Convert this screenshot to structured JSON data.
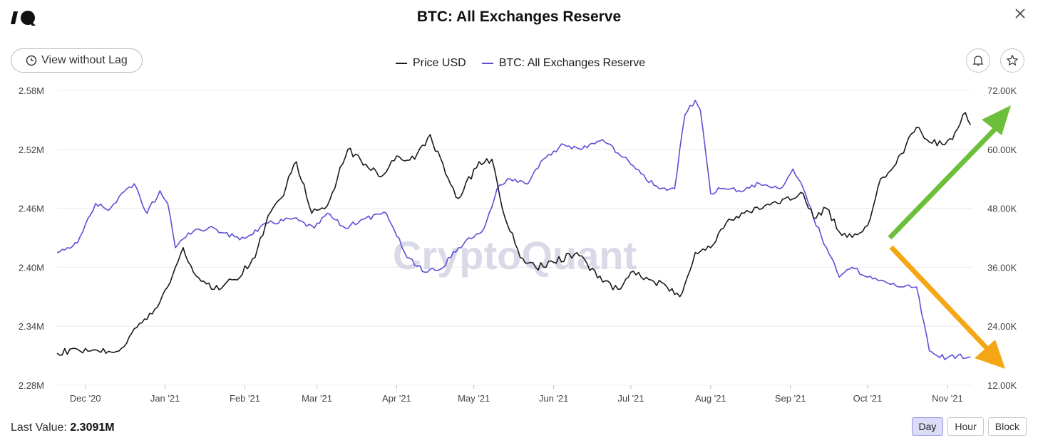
{
  "header": {
    "title": "BTC: All Exchanges Reserve",
    "view_without_lag_label": "View without Lag"
  },
  "legend": [
    {
      "name": "Price USD",
      "color": "#1a1a1a"
    },
    {
      "name": "BTC: All Exchanges Reserve",
      "color": "#5b4fd6"
    }
  ],
  "watermark": "CryptoQuant",
  "footer": {
    "last_value_label": "Last Value:",
    "last_value": "2.3091M",
    "range_buttons": [
      "Day",
      "Hour",
      "Block"
    ],
    "active_range": "Day"
  },
  "icons": [
    "logo-icon",
    "close-icon",
    "clock-icon",
    "bell-icon",
    "star-icon"
  ],
  "chart_data": {
    "type": "line",
    "x_tick_labels": [
      "Dec '20",
      "Jan '21",
      "Feb '21",
      "Mar '21",
      "Apr '21",
      "May '21",
      "Jun '21",
      "Jul '21",
      "Aug '21",
      "Sep '21",
      "Oct '21",
      "Nov '21"
    ],
    "y_left": {
      "ticks": [
        "2.28M",
        "2.34M",
        "2.40M",
        "2.46M",
        "2.52M",
        "2.58M"
      ],
      "range": [
        2.28,
        2.58
      ],
      "unit": "M"
    },
    "y_right": {
      "ticks": [
        "12.00K",
        "24.00K",
        "36.00K",
        "48.00K",
        "60.00K",
        "72.00K"
      ],
      "range": [
        12,
        72
      ],
      "unit": "K"
    },
    "grid": true,
    "legend_position": "top-center",
    "series": [
      {
        "name": "BTC: All Exchanges Reserve",
        "axis": "left",
        "color": "#5b4fd6",
        "x": [
          "2020-11-20",
          "2020-11-28",
          "2020-12-05",
          "2020-12-10",
          "2020-12-15",
          "2020-12-20",
          "2020-12-25",
          "2020-12-30",
          "2021-01-02",
          "2021-01-05",
          "2021-01-10",
          "2021-01-20",
          "2021-01-30",
          "2021-02-10",
          "2021-02-20",
          "2021-02-28",
          "2021-03-05",
          "2021-03-12",
          "2021-03-20",
          "2021-03-28",
          "2021-04-05",
          "2021-04-12",
          "2021-04-18",
          "2021-04-25",
          "2021-05-05",
          "2021-05-10",
          "2021-05-15",
          "2021-05-22",
          "2021-05-28",
          "2021-06-05",
          "2021-06-12",
          "2021-06-20",
          "2021-06-28",
          "2021-07-05",
          "2021-07-12",
          "2021-07-18",
          "2021-07-22",
          "2021-07-26",
          "2021-07-28",
          "2021-08-01",
          "2021-08-05",
          "2021-08-12",
          "2021-08-20",
          "2021-08-28",
          "2021-09-02",
          "2021-09-06",
          "2021-09-10",
          "2021-09-15",
          "2021-09-20",
          "2021-09-25",
          "2021-10-01",
          "2021-10-08",
          "2021-10-15",
          "2021-10-20",
          "2021-10-25",
          "2021-10-28",
          "2021-11-01",
          "2021-11-05",
          "2021-11-10"
        ],
        "values": [
          2.415,
          2.425,
          2.465,
          2.458,
          2.475,
          2.485,
          2.455,
          2.478,
          2.465,
          2.42,
          2.435,
          2.44,
          2.428,
          2.445,
          2.45,
          2.44,
          2.455,
          2.44,
          2.45,
          2.455,
          2.41,
          2.395,
          2.398,
          2.42,
          2.44,
          2.48,
          2.49,
          2.485,
          2.51,
          2.525,
          2.52,
          2.53,
          2.512,
          2.495,
          2.48,
          2.48,
          2.555,
          2.57,
          2.56,
          2.475,
          2.48,
          2.478,
          2.485,
          2.48,
          2.5,
          2.48,
          2.45,
          2.42,
          2.39,
          2.4,
          2.39,
          2.385,
          2.38,
          2.38,
          2.315,
          2.31,
          2.308,
          2.31,
          2.309
        ]
      },
      {
        "name": "Price USD",
        "axis": "right",
        "color": "#1a1a1a",
        "x": [
          "2020-11-20",
          "2020-11-28",
          "2020-12-05",
          "2020-12-10",
          "2020-12-15",
          "2020-12-20",
          "2020-12-27",
          "2021-01-02",
          "2021-01-08",
          "2021-01-12",
          "2021-01-20",
          "2021-01-28",
          "2021-02-05",
          "2021-02-10",
          "2021-02-15",
          "2021-02-21",
          "2021-02-27",
          "2021-03-05",
          "2021-03-13",
          "2021-03-20",
          "2021-03-25",
          "2021-04-02",
          "2021-04-08",
          "2021-04-14",
          "2021-04-20",
          "2021-04-25",
          "2021-05-03",
          "2021-05-08",
          "2021-05-12",
          "2021-05-19",
          "2021-05-25",
          "2021-06-01",
          "2021-06-10",
          "2021-06-20",
          "2021-06-26",
          "2021-07-01",
          "2021-07-08",
          "2021-07-15",
          "2021-07-20",
          "2021-07-26",
          "2021-08-01",
          "2021-08-07",
          "2021-08-14",
          "2021-08-22",
          "2021-08-28",
          "2021-09-06",
          "2021-09-10",
          "2021-09-15",
          "2021-09-21",
          "2021-09-28",
          "2021-10-01",
          "2021-10-06",
          "2021-10-12",
          "2021-10-16",
          "2021-10-20",
          "2021-10-25",
          "2021-10-30",
          "2021-11-03",
          "2021-11-08",
          "2021-11-10"
        ],
        "values": [
          18.5,
          19.3,
          19.2,
          18.9,
          19.5,
          23.5,
          26.5,
          32.0,
          40.0,
          35.0,
          31.5,
          33.5,
          38.0,
          46.5,
          50.0,
          57.5,
          47.0,
          48.5,
          60.0,
          57.0,
          54.5,
          58.5,
          58.0,
          63.0,
          55.0,
          50.0,
          57.5,
          58.0,
          48.0,
          38.0,
          36.0,
          37.0,
          39.0,
          33.0,
          31.5,
          35.0,
          33.5,
          32.0,
          30.0,
          39.0,
          40.0,
          45.0,
          47.0,
          48.5,
          49.0,
          51.0,
          46.0,
          48.0,
          42.5,
          43.0,
          44.5,
          54.0,
          57.0,
          61.0,
          64.5,
          61.5,
          61.0,
          62.0,
          67.5,
          65.0
        ]
      }
    ]
  }
}
